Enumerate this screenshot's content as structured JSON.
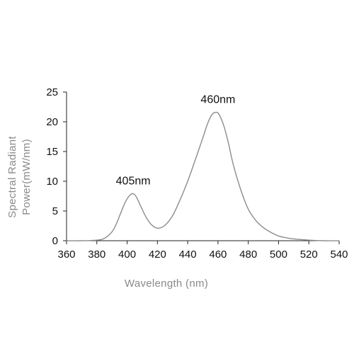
{
  "chart_data": {
    "type": "line",
    "title": "",
    "xlabel": "Wavelength (nm)",
    "ylabel_lines": [
      "Spectral Radiant",
      "Power(mW/nm)"
    ],
    "xlim": [
      360,
      540
    ],
    "ylim": [
      0,
      25
    ],
    "xticks": [
      360,
      380,
      400,
      420,
      440,
      460,
      480,
      500,
      520,
      540
    ],
    "yticks": [
      0,
      5,
      10,
      15,
      20,
      25
    ],
    "grid": false,
    "line_color": "#8c8c8c",
    "axis_color": "#222222",
    "series": [
      {
        "x": [
          360,
          370,
          380,
          385,
          390,
          393,
          396,
          399,
          402,
          404,
          406,
          409,
          412,
          415,
          418,
          421,
          425,
          430,
          435,
          440,
          445,
          450,
          453,
          456,
          459,
          461,
          464,
          467,
          470,
          475,
          480,
          485,
          490,
          495,
          500,
          505,
          510,
          520,
          530,
          540
        ],
        "y": [
          0.0,
          0.0,
          0.1,
          0.4,
          1.5,
          2.9,
          4.8,
          6.6,
          7.7,
          7.9,
          7.4,
          5.8,
          4.2,
          3.0,
          2.3,
          2.1,
          2.6,
          4.2,
          6.9,
          10.0,
          13.6,
          17.3,
          19.6,
          21.2,
          21.6,
          21.1,
          19.2,
          16.3,
          12.9,
          8.6,
          5.3,
          3.4,
          2.2,
          1.4,
          0.8,
          0.5,
          0.3,
          0.1,
          0.0,
          0.0
        ]
      }
    ],
    "annotations": [
      {
        "text": "405nm",
        "x": 404,
        "y": 7.9
      },
      {
        "text": "460nm",
        "x": 460,
        "y": 21.6
      }
    ]
  }
}
